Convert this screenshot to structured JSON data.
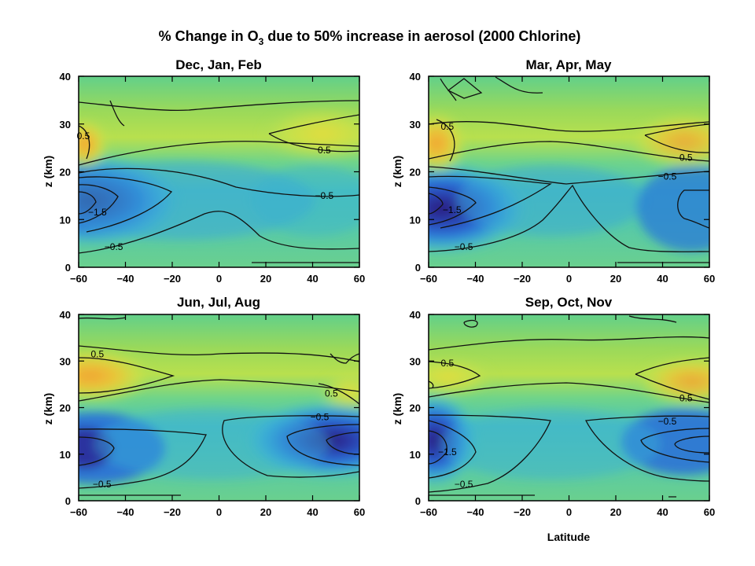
{
  "figure": {
    "title_prefix": "% Change in O",
    "title_sub": "3",
    "title_suffix": " due to 50% increase in aerosol (2000 Chlorine)"
  },
  "chart_data": [
    {
      "type": "heatmap",
      "title": "Dec, Jan, Feb",
      "xlabel": "",
      "ylabel": "z (km)",
      "xlim": [
        -60,
        60
      ],
      "ylim": [
        0,
        40
      ],
      "xticks": [
        "-60",
        "-40",
        "-20",
        "0",
        "20",
        "40",
        "60"
      ],
      "yticks": [
        "0",
        "10",
        "20",
        "30",
        "40"
      ],
      "colorscale": "percent change in O3; blue = negative, green = near zero, orange = positive",
      "features": [
        {
          "lat": -55,
          "z": 14.5,
          "value": -2.5
        },
        {
          "lat": -58,
          "z": 24.5,
          "value": 0.8
        },
        {
          "lat": 50,
          "z": 28,
          "value": 0.6
        },
        {
          "lat": -30,
          "z": 38,
          "value": 0.3
        }
      ],
      "contour_labels": [
        {
          "text": "0.5",
          "lat": -58,
          "z": 27
        },
        {
          "text": "0.5",
          "lat": 45,
          "z": 24
        },
        {
          "text": "-0.5",
          "lat": 45,
          "z": 14.5
        },
        {
          "text": "-1.5",
          "lat": -52,
          "z": 11
        },
        {
          "text": "-0.5",
          "lat": -45,
          "z": 3.8
        }
      ]
    },
    {
      "type": "heatmap",
      "title": "Mar, Apr, May",
      "xlabel": "",
      "ylabel": "z (km)",
      "xlim": [
        -60,
        60
      ],
      "ylim": [
        0,
        40
      ],
      "xticks": [
        "-60",
        "-40",
        "-20",
        "0",
        "20",
        "40",
        "60"
      ],
      "yticks": [
        "0",
        "10",
        "20",
        "30",
        "40"
      ],
      "colorscale": "percent change in O3; blue = negative, green = near zero, orange = positive",
      "features": [
        {
          "lat": -55,
          "z": 13.5,
          "value": -2.5
        },
        {
          "lat": -57,
          "z": 26,
          "value": 0.8
        },
        {
          "lat": 55,
          "z": 27.5,
          "value": 0.7
        },
        {
          "lat": 55,
          "z": 13,
          "value": -1.0
        }
      ],
      "contour_labels": [
        {
          "text": "0.5",
          "lat": -52,
          "z": 29
        },
        {
          "text": "0.5",
          "lat": 50,
          "z": 22.5
        },
        {
          "text": "-0.5",
          "lat": 42,
          "z": 18.5
        },
        {
          "text": "-1.5",
          "lat": -50,
          "z": 11.5
        },
        {
          "text": "-0.5",
          "lat": -45,
          "z": 3.8
        }
      ]
    },
    {
      "type": "heatmap",
      "title": "Jun, Jul, Aug",
      "xlabel": "",
      "ylabel": "z (km)",
      "xlim": [
        -60,
        60
      ],
      "ylim": [
        0,
        40
      ],
      "xticks": [
        "-60",
        "-40",
        "-20",
        "0",
        "20",
        "40",
        "60"
      ],
      "yticks": [
        "0",
        "10",
        "20",
        "30",
        "40"
      ],
      "colorscale": "percent change in O3; blue = negative, green = near zero, orange = positive",
      "features": [
        {
          "lat": -55,
          "z": 27.5,
          "value": 0.9
        },
        {
          "lat": 55,
          "z": 22,
          "value": 0.6
        },
        {
          "lat": -55,
          "z": 13,
          "value": -2.0
        },
        {
          "lat": 48,
          "z": 14,
          "value": -2.5
        }
      ],
      "contour_labels": [
        {
          "text": "0.5",
          "lat": -52,
          "z": 31
        },
        {
          "text": "0.5",
          "lat": 48,
          "z": 22.5
        },
        {
          "text": "-0.5",
          "lat": 43,
          "z": 17.5
        },
        {
          "text": "-0.5",
          "lat": -50,
          "z": 3
        }
      ]
    },
    {
      "type": "heatmap",
      "title": "Sep, Oct, Nov",
      "xlabel": "Latitude",
      "ylabel": "z (km)",
      "xlim": [
        -60,
        60
      ],
      "ylim": [
        0,
        40
      ],
      "xticks": [
        "-60",
        "-40",
        "-20",
        "0",
        "20",
        "40",
        "60"
      ],
      "yticks": [
        "0",
        "10",
        "20",
        "30",
        "40"
      ],
      "colorscale": "percent change in O3; blue = negative, green = near zero, orange = positive",
      "features": [
        {
          "lat": -57,
          "z": 14,
          "value": -2.5
        },
        {
          "lat": 55,
          "z": 27.5,
          "value": 0.7
        },
        {
          "lat": -55,
          "z": 27.5,
          "value": 0.5
        },
        {
          "lat": 55,
          "z": 13.5,
          "value": -1.3
        }
      ],
      "contour_labels": [
        {
          "text": "0.5",
          "lat": -52,
          "z": 29
        },
        {
          "text": "0.5",
          "lat": 50,
          "z": 21.5
        },
        {
          "text": "-0.5",
          "lat": 42,
          "z": 16.5
        },
        {
          "text": "-1.5",
          "lat": -52,
          "z": 10
        },
        {
          "text": "-0.5",
          "lat": -45,
          "z": 3
        }
      ]
    }
  ]
}
